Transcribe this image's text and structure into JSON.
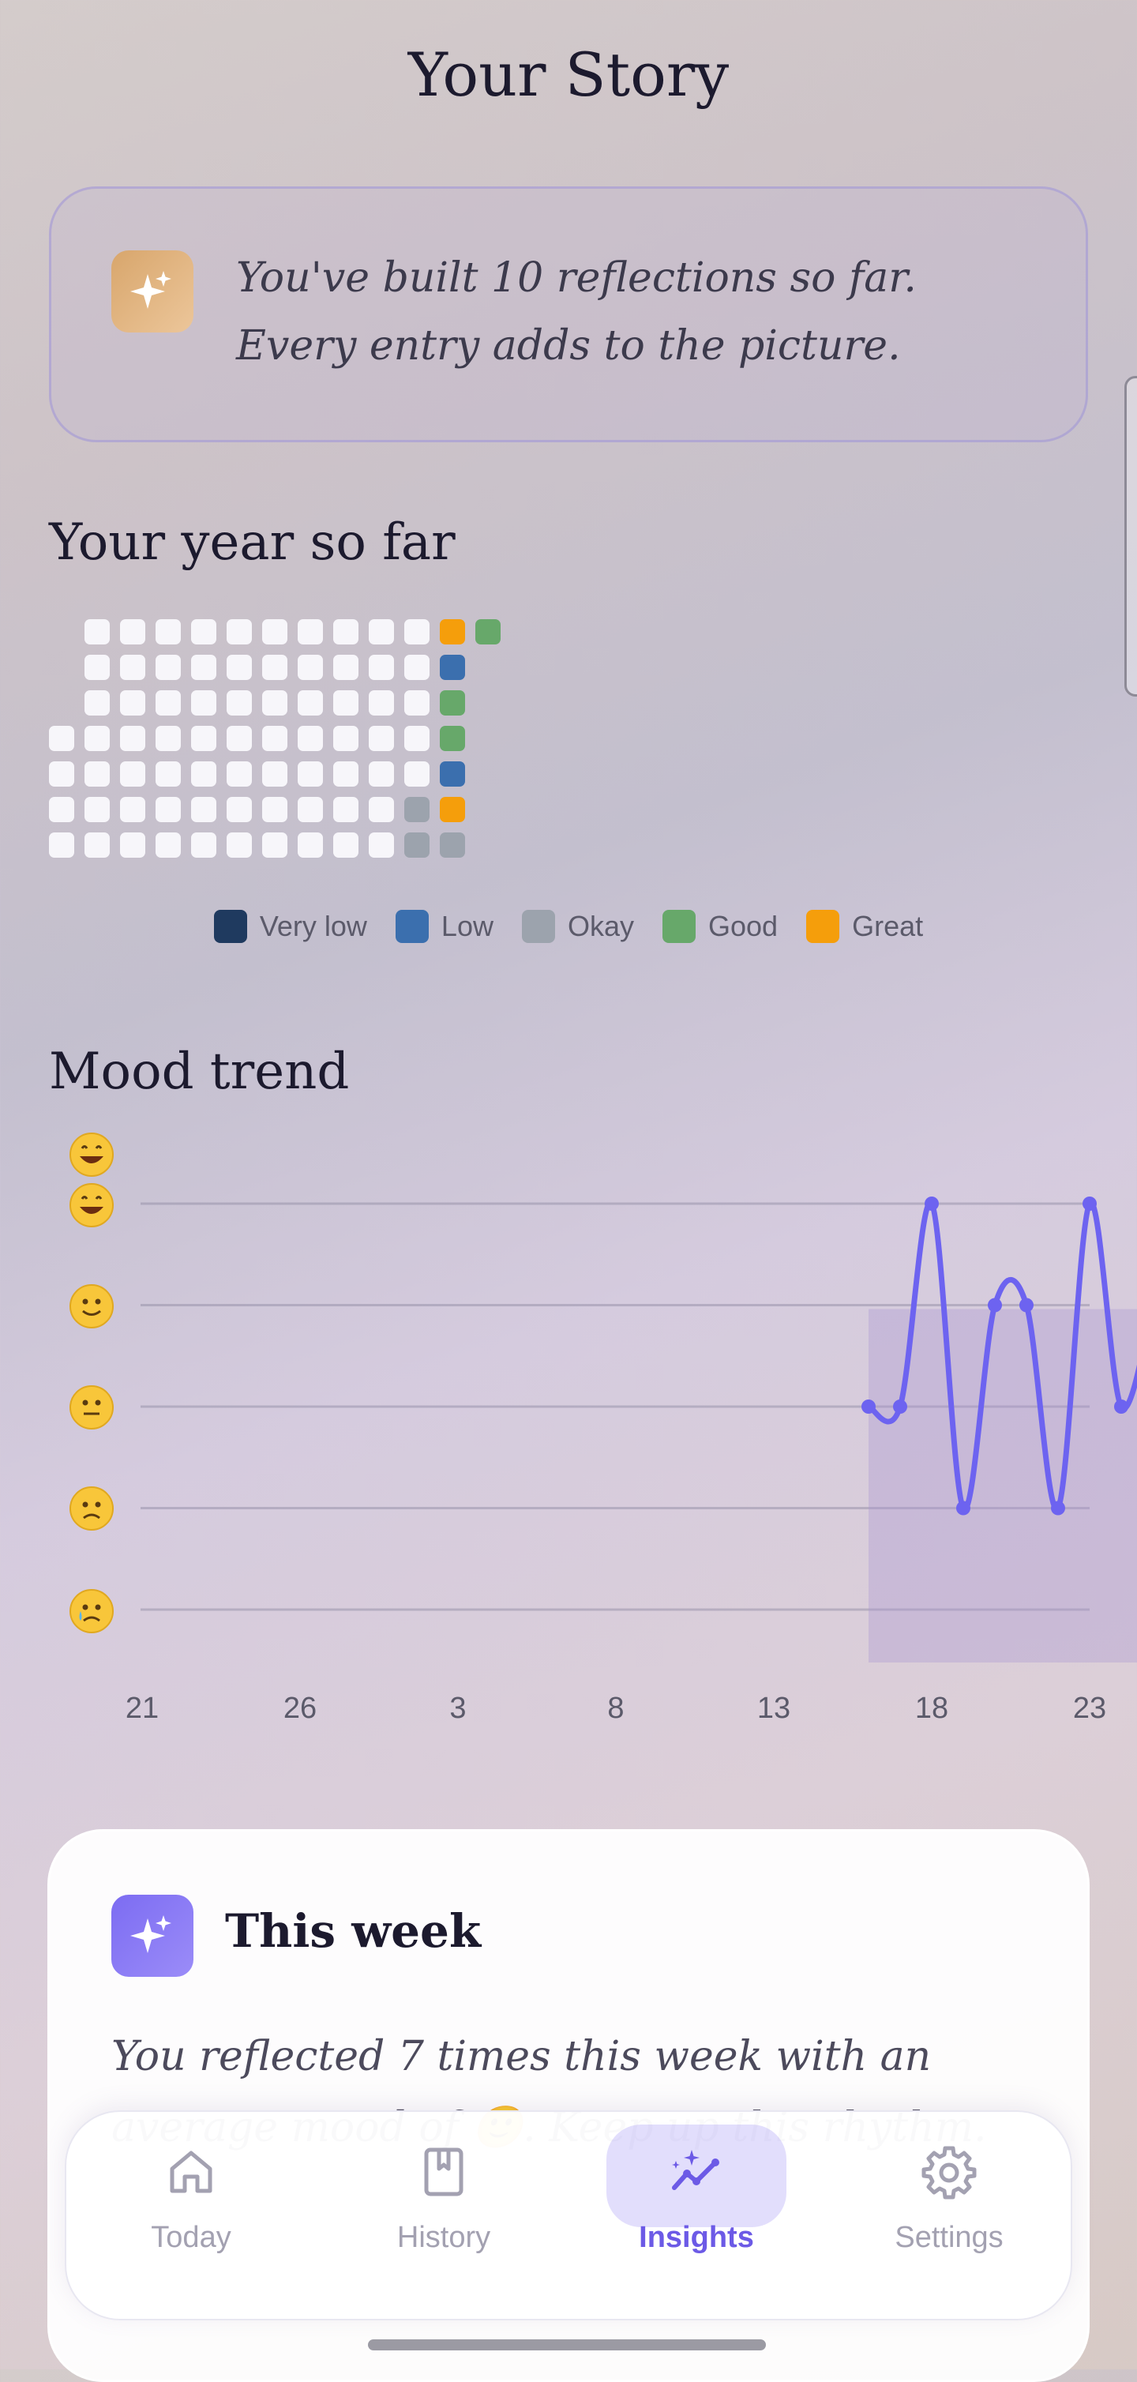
{
  "page": {
    "title": "Your Story"
  },
  "intro": {
    "line1": "You've built 10 reflections so far.",
    "line2": "Every entry adds to the picture.",
    "icon": "sparkles-icon"
  },
  "year": {
    "title": "Your year so far",
    "mood_cells": [
      {
        "row": 0,
        "col": 11,
        "mood": "great"
      },
      {
        "row": 0,
        "col": 12,
        "mood": "good"
      },
      {
        "row": 1,
        "col": 11,
        "mood": "low"
      },
      {
        "row": 2,
        "col": 11,
        "mood": "good"
      },
      {
        "row": 3,
        "col": 11,
        "mood": "good"
      },
      {
        "row": 4,
        "col": 11,
        "mood": "low"
      },
      {
        "row": 5,
        "col": 10,
        "mood": "okay"
      },
      {
        "row": 5,
        "col": 11,
        "mood": "great"
      },
      {
        "row": 6,
        "col": 10,
        "mood": "okay"
      },
      {
        "row": 6,
        "col": 11,
        "mood": "okay"
      }
    ],
    "legend": [
      {
        "label": "Very low",
        "color": "#1f3a5f"
      },
      {
        "label": "Low",
        "color": "#3b6fae"
      },
      {
        "label": "Okay",
        "color": "#9ca3ad"
      },
      {
        "label": "Good",
        "color": "#67a86a"
      },
      {
        "label": "Great",
        "color": "#f59e0b"
      }
    ],
    "empty_color": "#f7f6fa"
  },
  "trend": {
    "title": "Mood trend",
    "accent": "#6d63f0"
  },
  "chart_data": {
    "type": "line",
    "title": "Mood trend",
    "x_tick_labels": [
      "21",
      "26",
      "3",
      "8",
      "13",
      "18",
      "23"
    ],
    "y_levels": [
      "very-low",
      "low",
      "okay",
      "good",
      "great"
    ],
    "y_emoji_icons": [
      "very-low-emoji-icon",
      "low-emoji-icon",
      "okay-emoji-icon",
      "good-emoji-icon",
      "great-emoji-icon"
    ],
    "points": [
      {
        "day": 13,
        "mood": 3
      },
      {
        "day": 14,
        "mood": 3
      },
      {
        "day": 15,
        "mood": 5
      },
      {
        "day": 16,
        "mood": 2
      },
      {
        "day": 17,
        "mood": 4
      },
      {
        "day": 18,
        "mood": 4
      },
      {
        "day": 19,
        "mood": 2
      },
      {
        "day": 20,
        "mood": 5
      },
      {
        "day": 21,
        "mood": 3
      },
      {
        "day": 22,
        "mood": 4
      }
    ],
    "grid": true
  },
  "week": {
    "title": "This week",
    "body_line1": "You reflected 7 times this week with an",
    "body_line2": "average mood of 🙂. Keep up this rhythm.",
    "icon": "sparkles-icon"
  },
  "nav": {
    "items": [
      {
        "label": "Today",
        "icon": "home-icon"
      },
      {
        "label": "History",
        "icon": "book-icon"
      },
      {
        "label": "Insights",
        "icon": "trend-sparkle-icon",
        "active": true
      },
      {
        "label": "Settings",
        "icon": "gear-icon"
      }
    ]
  }
}
